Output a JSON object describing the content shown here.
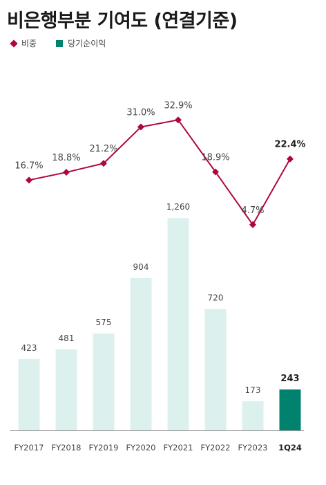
{
  "title": "비은행부분 기여도 (연결기준)",
  "legend": {
    "ratio_label": "비중",
    "profit_label": "당기순이익"
  },
  "colors": {
    "ratio_line": "#b0063f",
    "bar_light": "#dcf1ee",
    "bar_highlight": "#00826e",
    "axis": "#999999"
  },
  "chart_data": {
    "type": "bar",
    "categories": [
      "FY2017",
      "FY2018",
      "FY2019",
      "FY2020",
      "FY2021",
      "FY2022",
      "FY2023",
      "1Q24"
    ],
    "series": [
      {
        "name": "당기순이익",
        "type": "bar",
        "values": [
          423,
          481,
          575,
          904,
          1260,
          720,
          173,
          243
        ],
        "labels": [
          "423",
          "481",
          "575",
          "904",
          "1,260",
          "720",
          "173",
          "243"
        ],
        "highlight_index": 7
      },
      {
        "name": "비중",
        "type": "line",
        "values": [
          16.7,
          18.8,
          21.2,
          31.0,
          32.9,
          18.9,
          4.7,
          22.4
        ],
        "labels": [
          "16.7%",
          "18.8%",
          "21.2%",
          "31.0%",
          "32.9%",
          "18.9%",
          "4.7%",
          "22.4%"
        ],
        "highlight_index": 7
      }
    ],
    "grid": false,
    "legend_position": "top-left"
  }
}
